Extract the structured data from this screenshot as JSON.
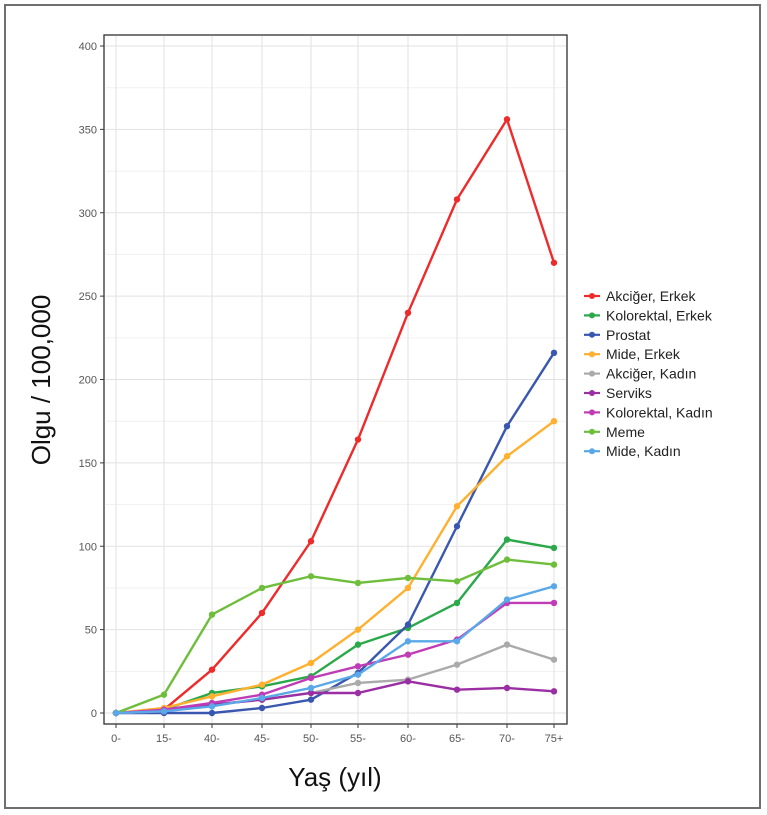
{
  "chart_data": {
    "type": "line",
    "xlabel": "Yaş (yıl)",
    "ylabel": "Olgu / 100,000",
    "categories": [
      "0-",
      "15-",
      "40-",
      "45-",
      "50-",
      "55-",
      "60-",
      "65-",
      "70-",
      "75+"
    ],
    "ylim": [
      0,
      400
    ],
    "yticks": [
      0,
      50,
      100,
      150,
      200,
      250,
      300,
      350,
      400
    ],
    "grid": true,
    "legend_position": "right",
    "series": [
      {
        "name": "Akciğer, Erkek",
        "color": "#ee2a2a",
        "values": [
          0,
          2,
          26,
          60,
          103,
          164,
          240,
          308,
          356,
          270
        ]
      },
      {
        "name": "Kolorektal, Erkek",
        "color": "#2aa84a",
        "values": [
          0,
          2,
          12,
          16,
          22,
          41,
          51,
          66,
          104,
          99
        ]
      },
      {
        "name": "Prostat",
        "color": "#3a57b0",
        "values": [
          0,
          0,
          0,
          3,
          8,
          24,
          53,
          112,
          172,
          216
        ]
      },
      {
        "name": "Mide, Erkek",
        "color": "#ffb02e",
        "values": [
          0,
          3,
          10,
          17,
          30,
          50,
          75,
          124,
          154,
          175
        ]
      },
      {
        "name": "Akciğer, Kadın",
        "color": "#aaaaaa",
        "values": [
          0,
          1,
          5,
          8,
          12,
          18,
          20,
          29,
          41,
          32
        ]
      },
      {
        "name": "Serviks",
        "color": "#9a2fa4",
        "values": [
          0,
          1,
          5,
          8,
          12,
          12,
          19,
          14,
          15,
          13
        ]
      },
      {
        "name": "Kolorektal, Kadın",
        "color": "#c03cb6",
        "values": [
          0,
          2,
          6,
          11,
          21,
          28,
          35,
          44,
          66,
          66
        ]
      },
      {
        "name": "Meme",
        "color": "#6ebe3c",
        "values": [
          0,
          11,
          59,
          75,
          82,
          78,
          81,
          79,
          92,
          89
        ]
      },
      {
        "name": "Mide, Kadın",
        "color": "#5aa8e8",
        "values": [
          0,
          1,
          4,
          9,
          15,
          23,
          43,
          43,
          68,
          76
        ]
      }
    ]
  }
}
